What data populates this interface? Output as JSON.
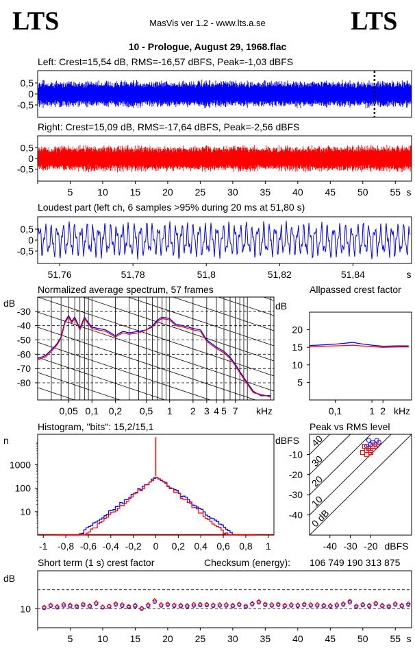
{
  "header": {
    "logo_left": "LTS",
    "logo_right": "LTS",
    "app_title": "MasVis ver 1.2 - www.lts.a.se",
    "file_title": "10 - Prologue, August 29, 1968.flac"
  },
  "colors": {
    "left": "#0000ff",
    "right": "#ff0000",
    "grid": "#000000"
  },
  "chart_data": [
    {
      "type": "line",
      "name": "left-waveform",
      "title": "Left: Crest=15,54 dB, RMS=-16,57 dBFS, Peak=-1,03 dBFS",
      "yticks": [
        "0,5",
        "0",
        "-0,5"
      ],
      "ylim": [
        -1,
        1
      ],
      "xlim": [
        0,
        57.5
      ],
      "envelope_amplitude": 0.6,
      "loudest_marker_s": 51.8
    },
    {
      "type": "line",
      "name": "right-waveform",
      "title": "Right: Crest=15,09 dB, RMS=-17,64 dBFS, Peak=-2,56 dBFS",
      "yticks": [
        "0,5",
        "0",
        "-0,5"
      ],
      "ylim": [
        -1,
        1
      ],
      "xlim": [
        0,
        57.5
      ],
      "xticks": [
        "5",
        "10",
        "15",
        "20",
        "25",
        "30",
        "35",
        "40",
        "45",
        "50",
        "55"
      ],
      "xunit": "s",
      "envelope_amplitude": 0.6
    },
    {
      "type": "line",
      "name": "loudest-part",
      "title": "Loudest part (left  ch, 6 samples >95% during 20 ms at 51,80 s)",
      "yticks": [
        "0,5",
        "0",
        "-0,5"
      ],
      "ylim": [
        -1,
        1
      ],
      "xlim": [
        51.754,
        51.856
      ],
      "xticks": [
        "51,76",
        "51,78",
        "51,8",
        "51,82",
        "51,84"
      ],
      "xunit": "s"
    },
    {
      "type": "line",
      "name": "spectrum",
      "title": "Normalized average spectrum, 57 frames",
      "ylabel": "dB",
      "yticks": [
        "-30",
        "-40",
        "-50",
        "-60",
        "-70",
        "-80"
      ],
      "ylim": [
        -92,
        -20
      ],
      "xlim_khz": [
        0.02,
        22
      ],
      "xticks": [
        "0,05",
        "0,1",
        "0,2",
        "0,5",
        "1",
        "2",
        "3",
        "4",
        "5",
        "7"
      ],
      "xunit": "kHz",
      "x_khz": [
        0.02,
        0.025,
        0.03,
        0.035,
        0.04,
        0.045,
        0.05,
        0.055,
        0.06,
        0.07,
        0.08,
        0.09,
        0.1,
        0.12,
        0.15,
        0.2,
        0.25,
        0.3,
        0.4,
        0.5,
        0.6,
        0.7,
        0.8,
        1.0,
        1.2,
        1.5,
        2.0,
        2.5,
        3.0,
        4.0,
        5.0,
        6.0,
        7.0,
        8.0,
        10,
        12,
        15,
        20
      ],
      "series": [
        {
          "name": "",
          "values": [
            -63,
            -61,
            -57,
            -53,
            -48,
            -37,
            -33,
            -37,
            -34,
            -42,
            -34,
            -38,
            -41,
            -42,
            -43,
            -47,
            -44,
            -45,
            -44,
            -43,
            -40,
            -36,
            -34,
            -35,
            -39,
            -40,
            -42,
            -43,
            -50,
            -55,
            -58,
            -62,
            -67,
            -72,
            -80,
            -86,
            -89,
            -89
          ]
        },
        {
          "name": "",
          "values": [
            -64,
            -62,
            -58,
            -54,
            -49,
            -38,
            -34,
            -38,
            -35,
            -43,
            -35,
            -39,
            -42,
            -43,
            -44,
            -48,
            -45,
            -46,
            -45,
            -43,
            -41,
            -37,
            -35,
            -36,
            -40,
            -41,
            -43,
            -44,
            -51,
            -56,
            -59,
            -63,
            -68,
            -73,
            -81,
            -87,
            -88,
            -90
          ]
        }
      ]
    },
    {
      "type": "line",
      "name": "allpassed-crest",
      "title": "Allpassed crest factor",
      "ylabel": "dB",
      "yticks": [
        "20",
        "15",
        "10",
        "5"
      ],
      "ylim": [
        0,
        25
      ],
      "xticks": [
        "0,1",
        "1",
        "2"
      ],
      "xunit": "kHz",
      "x_khz": [
        0.02,
        0.05,
        0.1,
        0.2,
        0.3,
        0.5,
        1,
        2,
        5,
        10
      ],
      "series": [
        {
          "name": "",
          "values": [
            15.5,
            15.7,
            15.9,
            16.2,
            16.4,
            16.0,
            15.6,
            15.3,
            15.4,
            15.4
          ]
        },
        {
          "name": "",
          "values": [
            15.1,
            15.3,
            15.4,
            15.5,
            15.6,
            15.4,
            15.2,
            15.0,
            15.1,
            15.1
          ]
        }
      ]
    },
    {
      "type": "line",
      "name": "histogram",
      "title": "Histogram, \"bits\": 15,2/15,1",
      "ylabel": "n",
      "yticks": [
        "1000",
        "100",
        "10"
      ],
      "ylog": true,
      "ylim": [
        1,
        20000
      ],
      "xlim": [
        -1.05,
        1.05
      ],
      "xticks": [
        "-1",
        "-0,8",
        "-0,6",
        "-0,4",
        "-0,2",
        "0",
        "0,2",
        "0,4",
        "0,6",
        "0,8",
        "1"
      ],
      "center_spike": 15000
    },
    {
      "type": "scatter",
      "name": "peak-vs-rms",
      "title": "Peak vs RMS level",
      "ylabel": "dBFS",
      "xlabel": "dBFS",
      "yticks": [
        "-10",
        "-20",
        "-30",
        "-40"
      ],
      "xticks": [
        "-40",
        "-30",
        "-20"
      ],
      "crest_lines": [
        "40",
        "30",
        "20",
        "10",
        "0 dB"
      ],
      "xlim": [
        -50,
        0
      ],
      "ylim": [
        -50,
        0
      ],
      "series": [
        {
          "name": "",
          "points": [
            [
              -21,
              -3
            ],
            [
              -19,
              -4
            ],
            [
              -17,
              -3
            ],
            [
              -20,
              -5
            ],
            [
              -22,
              -6
            ],
            [
              -18,
              -5
            ],
            [
              -16,
              -4
            ],
            [
              -21,
              -7
            ]
          ]
        },
        {
          "name": "",
          "points": [
            [
              -23,
              -6
            ],
            [
              -21,
              -7
            ],
            [
              -19,
              -6
            ],
            [
              -22,
              -8
            ],
            [
              -20,
              -9
            ],
            [
              -24,
              -9
            ],
            [
              -18,
              -6
            ],
            [
              -22,
              -10
            ],
            [
              -20,
              -8
            ],
            [
              -17,
              -5
            ]
          ]
        }
      ]
    },
    {
      "type": "scatter",
      "name": "short-term-crest",
      "title": "Short term (1 s) crest factor",
      "checksum_label": "Checksum (energy):",
      "checksum_value": "106 749 190 313 875",
      "ylabel": "dB",
      "yticks": [
        "10"
      ],
      "ylim": [
        4,
        22
      ],
      "xlim": [
        0,
        57.5
      ],
      "xticks": [
        "5",
        "10",
        "15",
        "20",
        "25",
        "30",
        "35",
        "40",
        "45",
        "50",
        "55"
      ],
      "xunit": "s",
      "series": [
        {
          "name": "",
          "values": [
            10.2,
            10.9,
            10.4,
            11.0,
            10.8,
            10.6,
            11.1,
            10.7,
            11.6,
            10.4,
            10.7,
            11.3,
            10.9,
            10.5,
            10.8,
            10.0,
            10.9,
            12.2,
            11.0,
            11.2,
            10.9,
            10.8,
            10.7,
            11.0,
            11.1,
            11.1,
            10.9,
            11.0,
            11.0,
            10.8,
            11.2,
            10.6,
            11.4,
            12.0,
            11.2,
            11.0,
            11.2,
            10.8,
            11.0,
            10.9,
            11.2,
            11.0,
            11.0,
            10.8,
            10.7,
            11.0,
            11.3,
            12.0,
            10.6,
            11.1,
            10.8,
            11.5,
            10.8,
            10.6,
            11.3,
            10.8,
            11.2
          ]
        },
        {
          "name": "",
          "values": [
            10.5,
            11.2,
            10.7,
            11.4,
            11.2,
            10.9,
            11.5,
            11.0,
            11.9,
            10.6,
            10.9,
            11.6,
            11.3,
            10.8,
            11.1,
            10.2,
            11.3,
            12.6,
            11.3,
            11.5,
            11.2,
            11.1,
            11.0,
            11.4,
            11.4,
            11.4,
            11.2,
            11.3,
            11.3,
            11.1,
            11.5,
            10.9,
            11.7,
            12.3,
            11.5,
            11.3,
            11.5,
            11.1,
            11.3,
            11.2,
            11.5,
            11.3,
            11.3,
            11.1,
            11.0,
            11.3,
            11.6,
            12.4,
            10.9,
            11.4,
            11.1,
            11.8,
            11.1,
            10.9,
            11.6,
            11.1,
            11.6
          ]
        }
      ]
    }
  ]
}
